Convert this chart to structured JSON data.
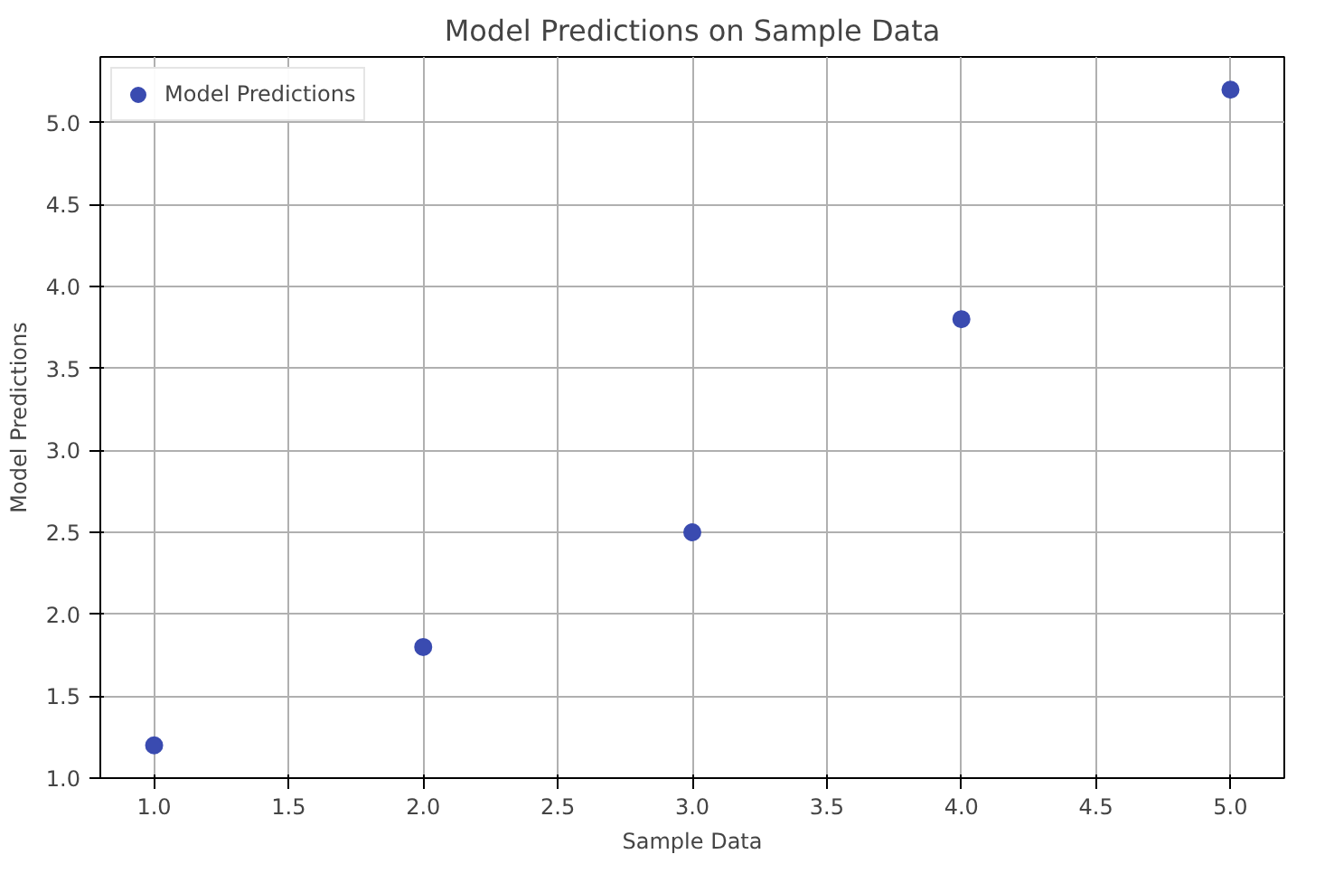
{
  "chart_data": {
    "type": "scatter",
    "title": "Model Predictions on Sample Data",
    "xlabel": "Sample Data",
    "ylabel": "Model Predictions",
    "x": [
      1.0,
      2.0,
      3.0,
      4.0,
      5.0
    ],
    "series": [
      {
        "name": "Model Predictions",
        "color": "#3a4bb0",
        "values": [
          1.2,
          1.8,
          2.5,
          3.8,
          5.2
        ]
      }
    ],
    "xlim": [
      0.8,
      5.2
    ],
    "ylim": [
      1.0,
      5.4
    ],
    "xticks": [
      {
        "value": 1.0,
        "label": "1.0"
      },
      {
        "value": 1.5,
        "label": "1.5"
      },
      {
        "value": 2.0,
        "label": "2.0"
      },
      {
        "value": 2.5,
        "label": "2.5"
      },
      {
        "value": 3.0,
        "label": "3.0"
      },
      {
        "value": 3.5,
        "label": "3.5"
      },
      {
        "value": 4.0,
        "label": "4.0"
      },
      {
        "value": 4.5,
        "label": "4.5"
      },
      {
        "value": 5.0,
        "label": "5.0"
      }
    ],
    "yticks": [
      {
        "value": 1.0,
        "label": "1.0"
      },
      {
        "value": 1.5,
        "label": "1.5"
      },
      {
        "value": 2.0,
        "label": "2.0"
      },
      {
        "value": 2.5,
        "label": "2.5"
      },
      {
        "value": 3.0,
        "label": "3.0"
      },
      {
        "value": 3.5,
        "label": "3.5"
      },
      {
        "value": 4.0,
        "label": "4.0"
      },
      {
        "value": 4.5,
        "label": "4.5"
      },
      {
        "value": 5.0,
        "label": "5.0"
      }
    ],
    "grid": true,
    "legend": "top left",
    "marker": "circle"
  }
}
